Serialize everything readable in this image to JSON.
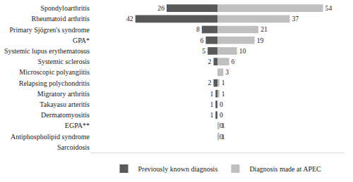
{
  "chart_data": {
    "type": "bar",
    "orientation": "horizontal",
    "categories": [
      "Spondyloarthritis",
      "Rheumatoid arthritis",
      "Primary Sjögren's syndrome",
      "GPA*",
      "Systemic lupus erythematosus",
      "Systemic sclerosis",
      "Microscopic polyangiitis",
      "Relapsing polychondritis",
      "Migratory arthritis",
      "Takayasu arteritis",
      "Dermatomyositis",
      "EGPA**",
      "Antiphospholipid syndrome",
      "Sarcoidosis"
    ],
    "series": [
      {
        "name": "Previously known diagnosis",
        "color": "#595959",
        "values": [
          26,
          42,
          8,
          6,
          5,
          2,
          0,
          2,
          1,
          1,
          1,
          0,
          0,
          null
        ]
      },
      {
        "name": "Diagnosis made at APEC",
        "color": "#bfbfbf",
        "values": [
          54,
          37,
          21,
          19,
          10,
          6,
          3,
          1,
          1,
          0,
          0,
          1,
          1,
          null
        ]
      }
    ],
    "xlim": [
      0,
      65
    ],
    "xticks": [],
    "tick_labels": "y",
    "data_labels": true,
    "legend": "bottom",
    "grid": false
  }
}
